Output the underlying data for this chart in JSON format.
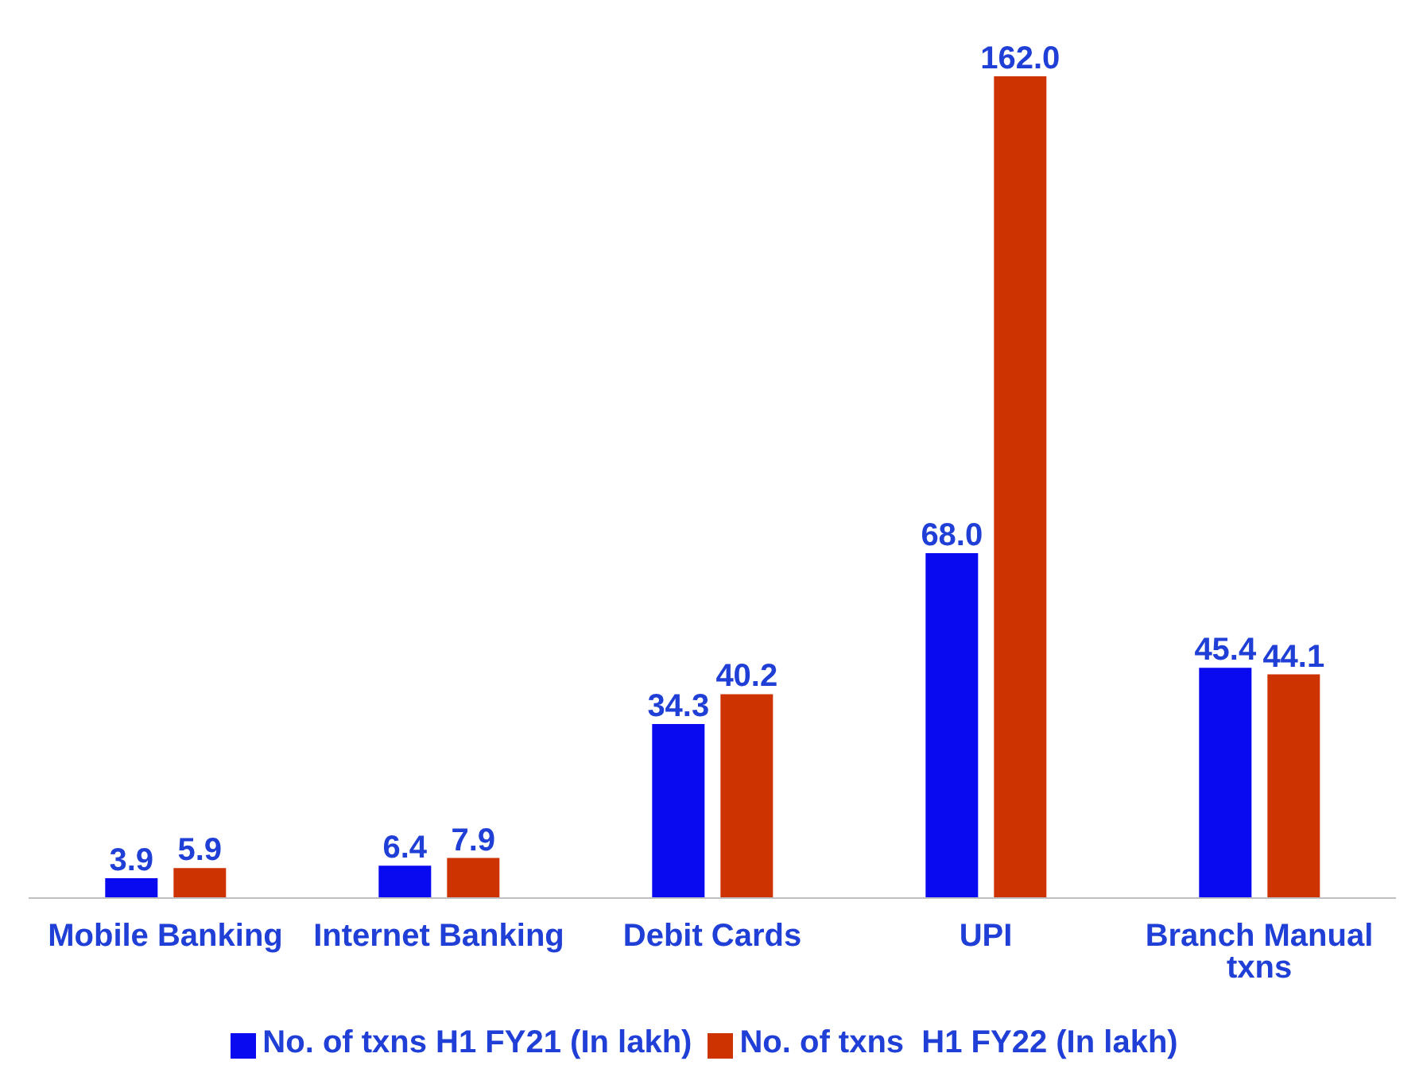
{
  "chart_data": {
    "type": "bar",
    "categories": [
      "Mobile Banking",
      "Internet Banking",
      "Debit Cards",
      "UPI",
      "Branch Manual txns"
    ],
    "series": [
      {
        "name": "No. of txns H1 FY21 (In lakh)",
        "color": "#0a0af0",
        "values": [
          3.9,
          6.4,
          34.3,
          68.0,
          45.4
        ],
        "value_labels": [
          "3.9",
          "6.4",
          "34.3",
          "68.0",
          "45.4"
        ]
      },
      {
        "name": "No. of txns  H1 FY22 (In lakh)",
        "color": "#cc3300",
        "values": [
          5.9,
          7.9,
          40.2,
          162.0,
          44.1
        ],
        "value_labels": [
          "5.9",
          "7.9",
          "40.2",
          "162.0",
          "44.1"
        ]
      }
    ],
    "legend": "bottom",
    "grid": false
  }
}
